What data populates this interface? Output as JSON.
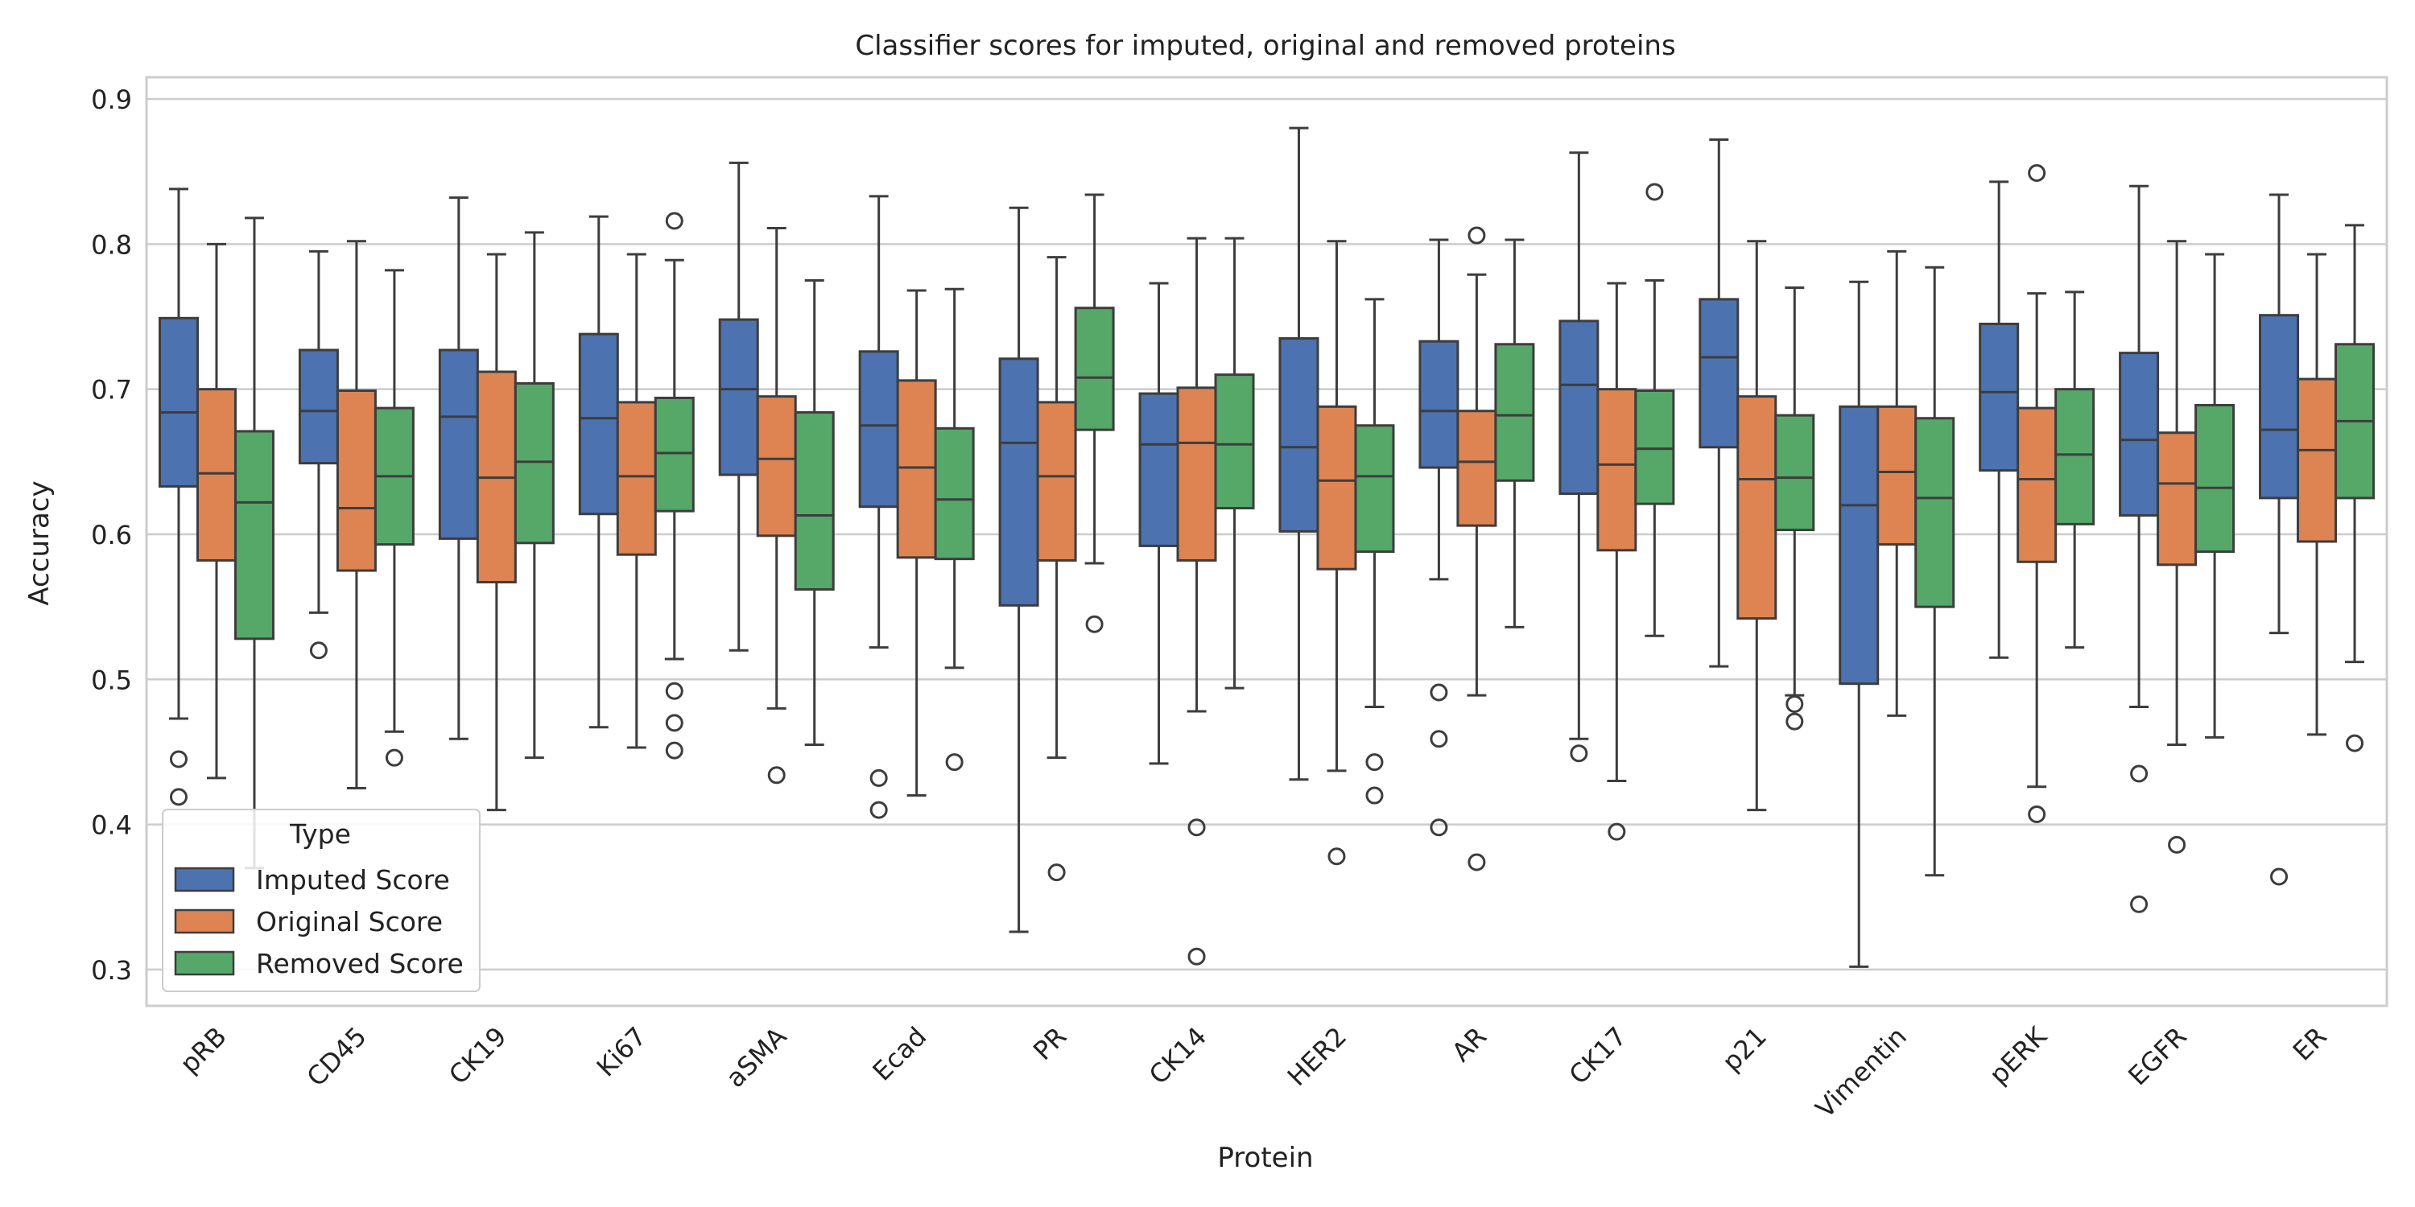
{
  "chart_data": {
    "type": "box",
    "title": "Classifier scores for imputed, original and removed proteins",
    "xlabel": "Protein",
    "ylabel": "Accuracy",
    "ylim": [
      0.275,
      0.915
    ],
    "yticks": [
      0.3,
      0.4,
      0.5,
      0.6,
      0.7,
      0.8,
      0.9
    ],
    "ytick_labels": [
      "0.3",
      "0.4",
      "0.5",
      "0.6",
      "0.7",
      "0.8",
      "0.9"
    ],
    "grid": true,
    "legend": {
      "title": "Type",
      "position": "lower-left",
      "entries": [
        "Imputed Score",
        "Original Score",
        "Removed Score"
      ]
    },
    "categories": [
      "pRB",
      "CD45",
      "CK19",
      "Ki67",
      "aSMA",
      "Ecad",
      "PR",
      "CK14",
      "HER2",
      "AR",
      "CK17",
      "p21",
      "Vimentin",
      "pERK",
      "EGFR",
      "ER"
    ],
    "series": [
      {
        "name": "Imputed Score",
        "color": "#4c72b0",
        "boxes": [
          {
            "low": 0.473,
            "q1": 0.633,
            "median": 0.684,
            "q3": 0.749,
            "high": 0.838,
            "outliers": [
              0.445,
              0.419
            ]
          },
          {
            "low": 0.546,
            "q1": 0.649,
            "median": 0.685,
            "q3": 0.727,
            "high": 0.795,
            "outliers": [
              0.52
            ]
          },
          {
            "low": 0.459,
            "q1": 0.597,
            "median": 0.681,
            "q3": 0.727,
            "high": 0.832,
            "outliers": []
          },
          {
            "low": 0.467,
            "q1": 0.614,
            "median": 0.68,
            "q3": 0.738,
            "high": 0.819,
            "outliers": []
          },
          {
            "low": 0.52,
            "q1": 0.641,
            "median": 0.7,
            "q3": 0.748,
            "high": 0.856,
            "outliers": []
          },
          {
            "low": 0.522,
            "q1": 0.619,
            "median": 0.675,
            "q3": 0.726,
            "high": 0.833,
            "outliers": [
              0.432,
              0.41
            ]
          },
          {
            "low": 0.326,
            "q1": 0.551,
            "median": 0.663,
            "q3": 0.721,
            "high": 0.825,
            "outliers": []
          },
          {
            "low": 0.442,
            "q1": 0.592,
            "median": 0.662,
            "q3": 0.697,
            "high": 0.773,
            "outliers": []
          },
          {
            "low": 0.431,
            "q1": 0.602,
            "median": 0.66,
            "q3": 0.735,
            "high": 0.88,
            "outliers": []
          },
          {
            "low": 0.569,
            "q1": 0.646,
            "median": 0.685,
            "q3": 0.733,
            "high": 0.803,
            "outliers": [
              0.491,
              0.459,
              0.398
            ]
          },
          {
            "low": 0.459,
            "q1": 0.628,
            "median": 0.703,
            "q3": 0.747,
            "high": 0.863,
            "outliers": [
              0.449
            ]
          },
          {
            "low": 0.509,
            "q1": 0.66,
            "median": 0.722,
            "q3": 0.762,
            "high": 0.872,
            "outliers": []
          },
          {
            "low": 0.302,
            "q1": 0.497,
            "median": 0.62,
            "q3": 0.688,
            "high": 0.774,
            "outliers": []
          },
          {
            "low": 0.515,
            "q1": 0.644,
            "median": 0.698,
            "q3": 0.745,
            "high": 0.843,
            "outliers": []
          },
          {
            "low": 0.481,
            "q1": 0.613,
            "median": 0.665,
            "q3": 0.725,
            "high": 0.84,
            "outliers": [
              0.435,
              0.345
            ]
          },
          {
            "low": 0.532,
            "q1": 0.625,
            "median": 0.672,
            "q3": 0.751,
            "high": 0.834,
            "outliers": [
              0.364
            ]
          }
        ]
      },
      {
        "name": "Original Score",
        "color": "#dd8452",
        "boxes": [
          {
            "low": 0.432,
            "q1": 0.582,
            "median": 0.642,
            "q3": 0.7,
            "high": 0.8,
            "outliers": []
          },
          {
            "low": 0.425,
            "q1": 0.575,
            "median": 0.618,
            "q3": 0.699,
            "high": 0.802,
            "outliers": []
          },
          {
            "low": 0.41,
            "q1": 0.567,
            "median": 0.639,
            "q3": 0.712,
            "high": 0.793,
            "outliers": []
          },
          {
            "low": 0.453,
            "q1": 0.586,
            "median": 0.64,
            "q3": 0.691,
            "high": 0.793,
            "outliers": []
          },
          {
            "low": 0.48,
            "q1": 0.599,
            "median": 0.652,
            "q3": 0.695,
            "high": 0.811,
            "outliers": [
              0.434
            ]
          },
          {
            "low": 0.42,
            "q1": 0.584,
            "median": 0.646,
            "q3": 0.706,
            "high": 0.768,
            "outliers": []
          },
          {
            "low": 0.446,
            "q1": 0.582,
            "median": 0.64,
            "q3": 0.691,
            "high": 0.791,
            "outliers": [
              0.367
            ]
          },
          {
            "low": 0.478,
            "q1": 0.582,
            "median": 0.663,
            "q3": 0.701,
            "high": 0.804,
            "outliers": [
              0.398,
              0.309
            ]
          },
          {
            "low": 0.437,
            "q1": 0.576,
            "median": 0.637,
            "q3": 0.688,
            "high": 0.802,
            "outliers": [
              0.378
            ]
          },
          {
            "low": 0.489,
            "q1": 0.606,
            "median": 0.65,
            "q3": 0.685,
            "high": 0.779,
            "outliers": [
              0.806,
              0.374
            ]
          },
          {
            "low": 0.43,
            "q1": 0.589,
            "median": 0.648,
            "q3": 0.7,
            "high": 0.773,
            "outliers": [
              0.395
            ]
          },
          {
            "low": 0.41,
            "q1": 0.542,
            "median": 0.638,
            "q3": 0.695,
            "high": 0.802,
            "outliers": []
          },
          {
            "low": 0.475,
            "q1": 0.593,
            "median": 0.643,
            "q3": 0.688,
            "high": 0.795,
            "outliers": []
          },
          {
            "low": 0.426,
            "q1": 0.581,
            "median": 0.638,
            "q3": 0.687,
            "high": 0.766,
            "outliers": [
              0.849,
              0.407
            ]
          },
          {
            "low": 0.455,
            "q1": 0.579,
            "median": 0.635,
            "q3": 0.67,
            "high": 0.802,
            "outliers": [
              0.386
            ]
          },
          {
            "low": 0.462,
            "q1": 0.595,
            "median": 0.658,
            "q3": 0.707,
            "high": 0.793,
            "outliers": []
          }
        ]
      },
      {
        "name": "Removed Score",
        "color": "#55a868",
        "boxes": [
          {
            "low": 0.37,
            "q1": 0.528,
            "median": 0.622,
            "q3": 0.671,
            "high": 0.818,
            "outliers": []
          },
          {
            "low": 0.464,
            "q1": 0.593,
            "median": 0.64,
            "q3": 0.687,
            "high": 0.782,
            "outliers": [
              0.446
            ]
          },
          {
            "low": 0.446,
            "q1": 0.594,
            "median": 0.65,
            "q3": 0.704,
            "high": 0.808,
            "outliers": []
          },
          {
            "low": 0.514,
            "q1": 0.616,
            "median": 0.656,
            "q3": 0.694,
            "high": 0.789,
            "outliers": [
              0.816,
              0.492,
              0.47,
              0.451
            ]
          },
          {
            "low": 0.455,
            "q1": 0.562,
            "median": 0.613,
            "q3": 0.684,
            "high": 0.775,
            "outliers": []
          },
          {
            "low": 0.508,
            "q1": 0.583,
            "median": 0.624,
            "q3": 0.673,
            "high": 0.769,
            "outliers": [
              0.443
            ]
          },
          {
            "low": 0.58,
            "q1": 0.672,
            "median": 0.708,
            "q3": 0.756,
            "high": 0.834,
            "outliers": [
              0.538
            ]
          },
          {
            "low": 0.494,
            "q1": 0.618,
            "median": 0.662,
            "q3": 0.71,
            "high": 0.804,
            "outliers": []
          },
          {
            "low": 0.481,
            "q1": 0.588,
            "median": 0.64,
            "q3": 0.675,
            "high": 0.762,
            "outliers": [
              0.443,
              0.42
            ]
          },
          {
            "low": 0.536,
            "q1": 0.637,
            "median": 0.682,
            "q3": 0.731,
            "high": 0.803,
            "outliers": []
          },
          {
            "low": 0.53,
            "q1": 0.621,
            "median": 0.659,
            "q3": 0.699,
            "high": 0.775,
            "outliers": [
              0.836
            ]
          },
          {
            "low": 0.489,
            "q1": 0.603,
            "median": 0.639,
            "q3": 0.682,
            "high": 0.77,
            "outliers": [
              0.483,
              0.471
            ]
          },
          {
            "low": 0.365,
            "q1": 0.55,
            "median": 0.625,
            "q3": 0.68,
            "high": 0.784,
            "outliers": []
          },
          {
            "low": 0.522,
            "q1": 0.607,
            "median": 0.655,
            "q3": 0.7,
            "high": 0.767,
            "outliers": []
          },
          {
            "low": 0.46,
            "q1": 0.588,
            "median": 0.632,
            "q3": 0.689,
            "high": 0.793,
            "outliers": []
          },
          {
            "low": 0.512,
            "q1": 0.625,
            "median": 0.678,
            "q3": 0.731,
            "high": 0.813,
            "outliers": [
              0.456
            ]
          }
        ]
      }
    ]
  }
}
